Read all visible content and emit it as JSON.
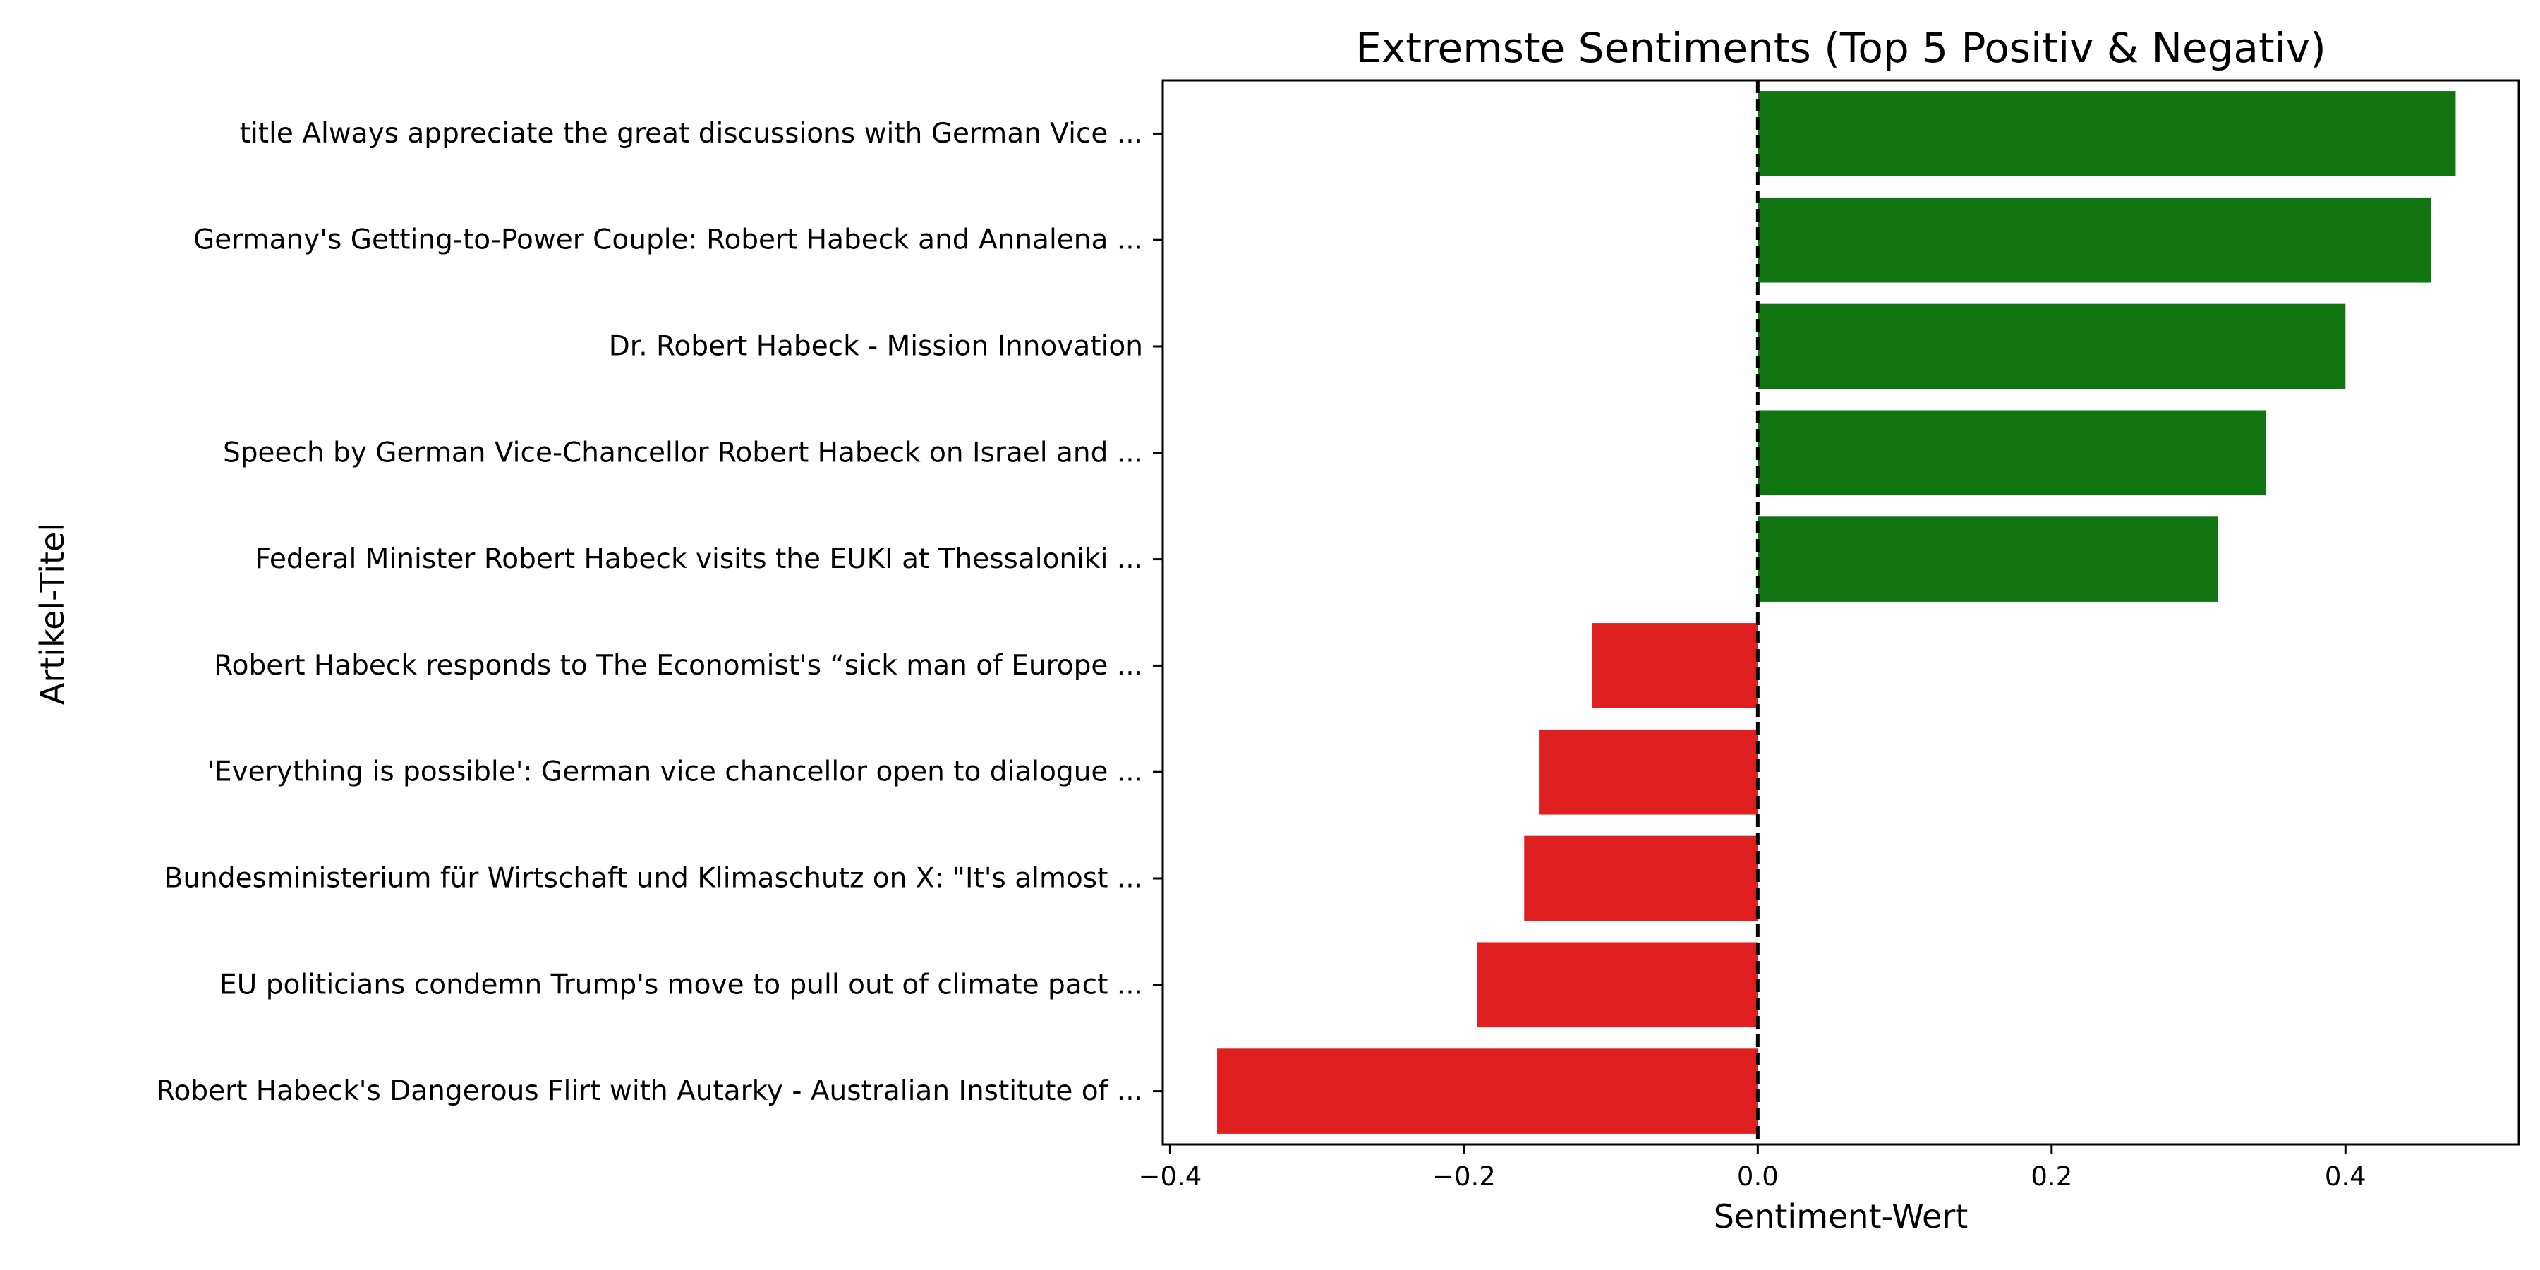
{
  "chart_data": {
    "type": "bar",
    "orientation": "horizontal",
    "title": "Extremste Sentiments (Top 5 Positiv & Negativ)",
    "xlabel": "Sentiment-Wert",
    "ylabel": "Artikel-Titel",
    "xlim": [
      -0.405,
      0.518
    ],
    "xticks": [
      -0.4,
      -0.2,
      0.0,
      0.2,
      0.4
    ],
    "xtick_labels": [
      "−0.4",
      "−0.2",
      "0.0",
      "0.2",
      "0.4"
    ],
    "grid": false,
    "reference_line": {
      "x": 0.0,
      "style": "dashed",
      "color": "#000000"
    },
    "colors": {
      "positive": "#107510",
      "negative": "#e02020"
    },
    "categories": [
      "title Always appreciate the great discussions with German Vice ...",
      "Germany's Getting-to-Power Couple: Robert Habeck and Annalena ...",
      "Dr. Robert Habeck - Mission Innovation",
      "Speech by German Vice-Chancellor Robert Habeck on Israel and ...",
      "Federal Minister Robert Habeck visits the EUKI at Thessaloniki ...",
      "Robert Habeck responds to The Economist's “sick man of Europe ...",
      "'Everything is possible': German vice chancellor open to dialogue ...",
      "Bundesministerium für Wirtschaft und Klimaschutz on X: \"It's almost ...",
      "EU politicians condemn Trump's move to pull out of climate pact ...",
      "Robert Habeck's Dangerous Flirt with Autarky - Australian Institute of ..."
    ],
    "values": [
      0.475,
      0.458,
      0.4,
      0.346,
      0.313,
      -0.113,
      -0.149,
      -0.159,
      -0.191,
      -0.368
    ]
  }
}
